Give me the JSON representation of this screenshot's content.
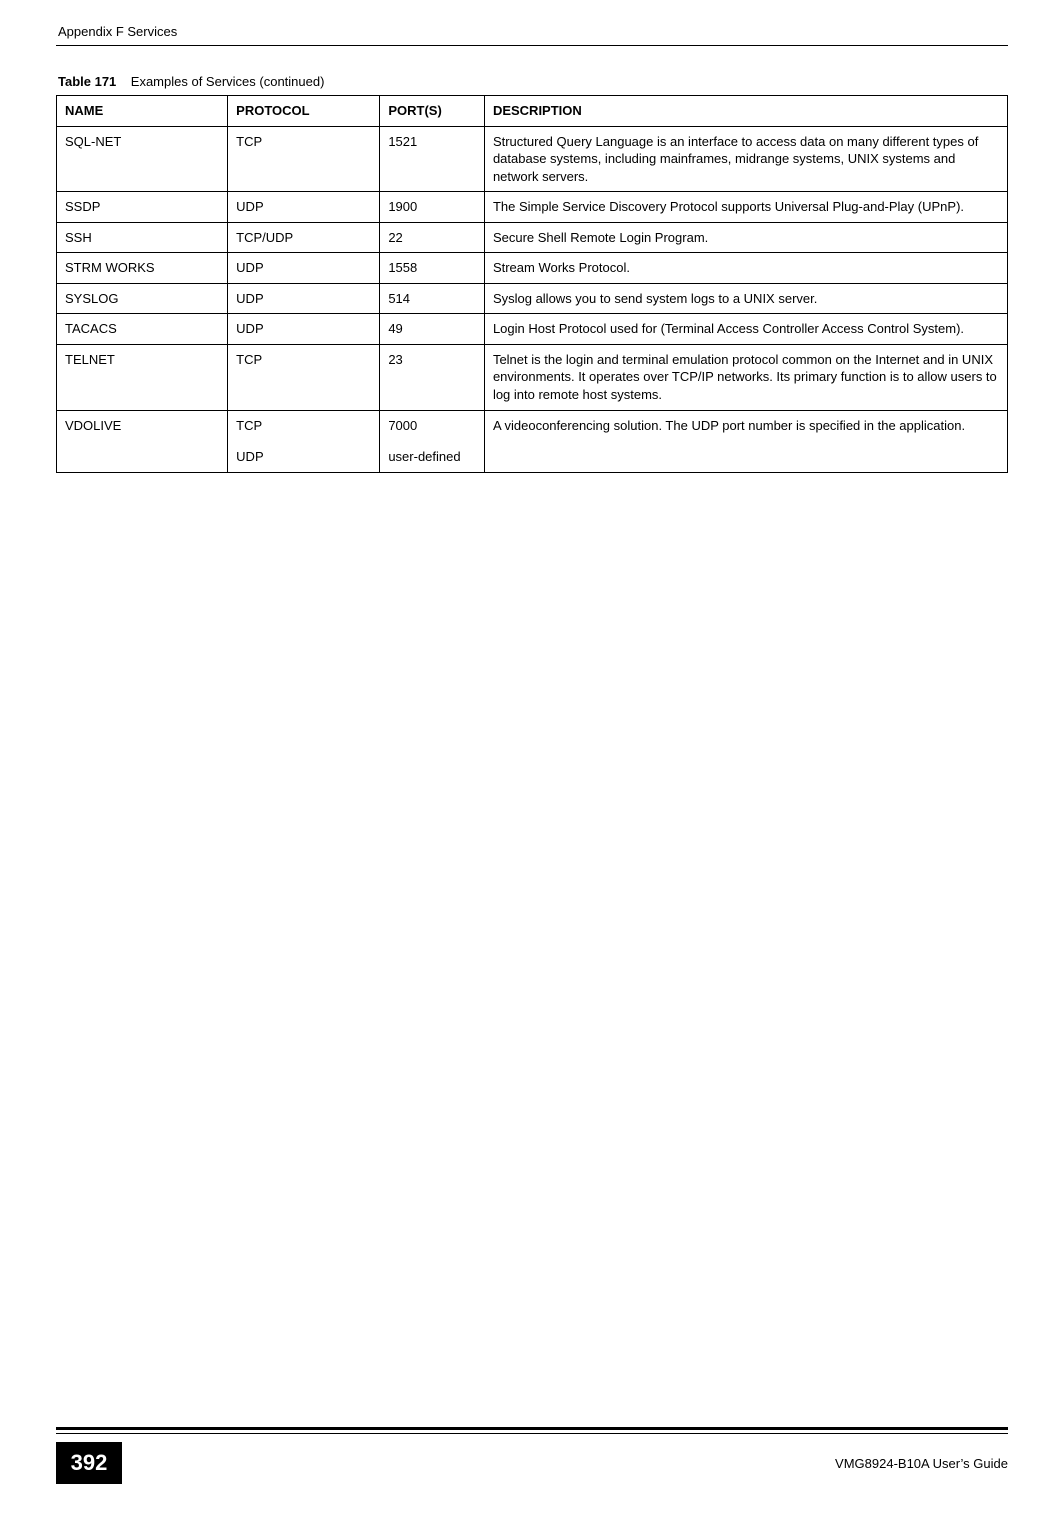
{
  "header": {
    "running_title": "Appendix F Services"
  },
  "table": {
    "caption_label": "Table 171",
    "caption_text": "Examples of Services (continued)",
    "columns": [
      "NAME",
      "PROTOCOL",
      "PORT(S)",
      "DESCRIPTION"
    ],
    "col_widths_pct": [
      18,
      16,
      11,
      55
    ],
    "border_color": "#000000",
    "header_bg": "#ffffff",
    "font_size_pt": 10,
    "rows": [
      {
        "name": "SQL-NET",
        "protocol": "TCP",
        "ports": "1521",
        "description": "Structured Query Language is an interface to access data on many different types of database systems, including mainframes, midrange systems, UNIX systems and network servers."
      },
      {
        "name": "SSDP",
        "protocol": "UDP",
        "ports": "1900",
        "description": "The Simple Service Discovery Protocol supports Universal Plug-and-Play (UPnP)."
      },
      {
        "name": "SSH",
        "protocol": "TCP/UDP",
        "ports": "22",
        "description": "Secure Shell Remote Login Program."
      },
      {
        "name": "STRM WORKS",
        "protocol": "UDP",
        "ports": "1558",
        "description": "Stream Works Protocol."
      },
      {
        "name": "SYSLOG",
        "protocol": "UDP",
        "ports": "514",
        "description": "Syslog allows you to send system logs to a UNIX server."
      },
      {
        "name": "TACACS",
        "protocol": "UDP",
        "ports": "49",
        "description": "Login Host Protocol used for (Terminal Access Controller Access Control System)."
      },
      {
        "name": "TELNET",
        "protocol": "TCP",
        "ports": "23",
        "description": "Telnet is the login and terminal emulation protocol common on the Internet and in UNIX environments. It operates over TCP/IP networks. Its primary function is to allow users to log into remote host systems."
      },
      {
        "name": "VDOLIVE",
        "protocol_lines": [
          "TCP",
          "UDP"
        ],
        "ports_lines": [
          "7000",
          "user-defined"
        ],
        "description": "A videoconferencing solution. The UDP port number is specified in the application."
      }
    ]
  },
  "footer": {
    "page_number": "392",
    "guide_name": "VMG8924-B10A User’s Guide",
    "page_number_bg": "#000000",
    "page_number_fg": "#ffffff"
  }
}
